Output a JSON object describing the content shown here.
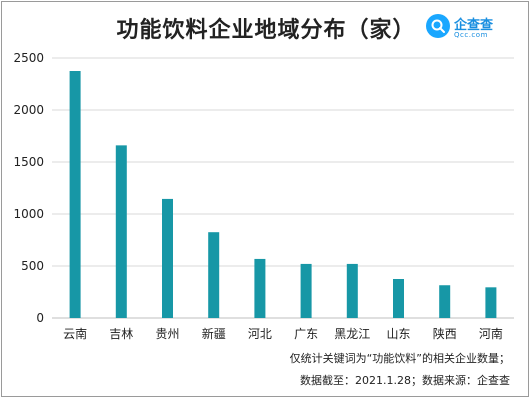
{
  "brand": {
    "name": "企查查",
    "sub": "Qcc.com"
  },
  "footnotes": {
    "line1": "仅统计关键词为“功能饮料”的相关企业数量；",
    "line2": "数据截至：2021.1.28；数据来源：企查查"
  },
  "colors": {
    "bar": "#1797a6",
    "grid": "#d9d9d9",
    "axis_text": "#222222"
  },
  "chart_data": {
    "type": "bar",
    "title": "功能饮料企业地域分布（家）",
    "categories": [
      "云南",
      "吉林",
      "贵州",
      "新疆",
      "河北",
      "广东",
      "黑龙江",
      "山东",
      "陕西",
      "河南"
    ],
    "values": [
      2375,
      1660,
      1145,
      825,
      568,
      520,
      520,
      375,
      315,
      295
    ],
    "ylim": [
      0,
      2500
    ],
    "yticks": [
      "0",
      "500",
      "1000",
      "1500",
      "2000",
      "2500"
    ],
    "xlabel": "",
    "ylabel": "",
    "grid": true,
    "legend": "none"
  }
}
